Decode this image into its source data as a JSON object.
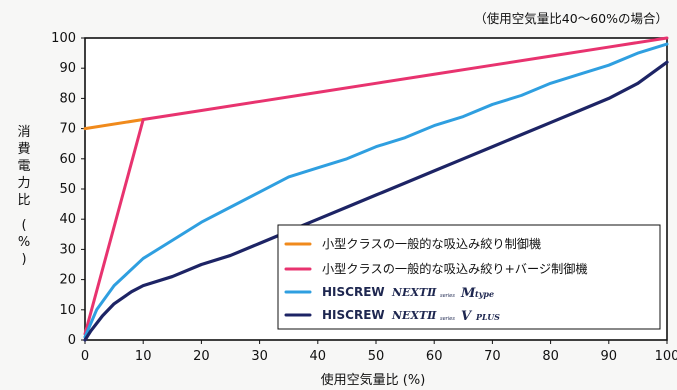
{
  "chart_data": {
    "type": "line",
    "note": "（使用空気量比40～60%の場合）",
    "xlabel": "使用空気量比 (%)",
    "ylabel": "消費電力比 (%)",
    "xlim": [
      0,
      100
    ],
    "ylim": [
      0,
      100
    ],
    "x_ticks": [
      0,
      10,
      20,
      30,
      40,
      50,
      60,
      70,
      80,
      90,
      100
    ],
    "y_ticks": [
      0,
      10,
      20,
      30,
      40,
      50,
      60,
      70,
      80,
      90,
      100
    ],
    "grid": false,
    "legend_position": "bottom-right",
    "series": [
      {
        "name": "小型クラスの一般的な吸込み絞り制御機",
        "color": "#f08a1c",
        "x": [
          0,
          10
        ],
        "y": [
          70,
          73
        ]
      },
      {
        "name": "小型クラスの一般的な吸込み絞り+バージ制御機",
        "color": "#e8336f",
        "x": [
          0,
          10,
          20,
          30,
          40,
          50,
          60,
          70,
          80,
          90,
          100
        ],
        "y": [
          2,
          73,
          76,
          79,
          82,
          85,
          88,
          91,
          94,
          97,
          100
        ]
      },
      {
        "name": "HISCREW NEXTⅡ series Mtype",
        "legend_parts": {
          "brand": "HISCREW",
          "series": "NEXTⅡ",
          "tiny": "series",
          "model": "M",
          "suffix": "type"
        },
        "color": "#2f9fe0",
        "x": [
          0,
          2,
          5,
          10,
          15,
          20,
          25,
          30,
          35,
          40,
          45,
          50,
          55,
          60,
          65,
          70,
          75,
          80,
          85,
          90,
          95,
          100
        ],
        "y": [
          1,
          10,
          18,
          27,
          33,
          39,
          44,
          49,
          54,
          57,
          60,
          64,
          67,
          71,
          74,
          78,
          81,
          85,
          88,
          91,
          95,
          98
        ]
      },
      {
        "name": "HISCREW NEXTⅡ series VPLUS",
        "legend_parts": {
          "brand": "HISCREW",
          "series": "NEXTⅡ",
          "tiny": "series",
          "model": "V",
          "suffix": "PLUS"
        },
        "color": "#1d2465",
        "x": [
          0,
          1,
          3,
          5,
          8,
          10,
          15,
          20,
          25,
          30,
          35,
          40,
          45,
          50,
          55,
          60,
          65,
          70,
          75,
          80,
          85,
          90,
          95,
          100
        ],
        "y": [
          0,
          3,
          8,
          12,
          16,
          18,
          21,
          25,
          28,
          32,
          36,
          40,
          44,
          48,
          52,
          56,
          60,
          64,
          68,
          72,
          76,
          80,
          85,
          92
        ]
      }
    ]
  }
}
